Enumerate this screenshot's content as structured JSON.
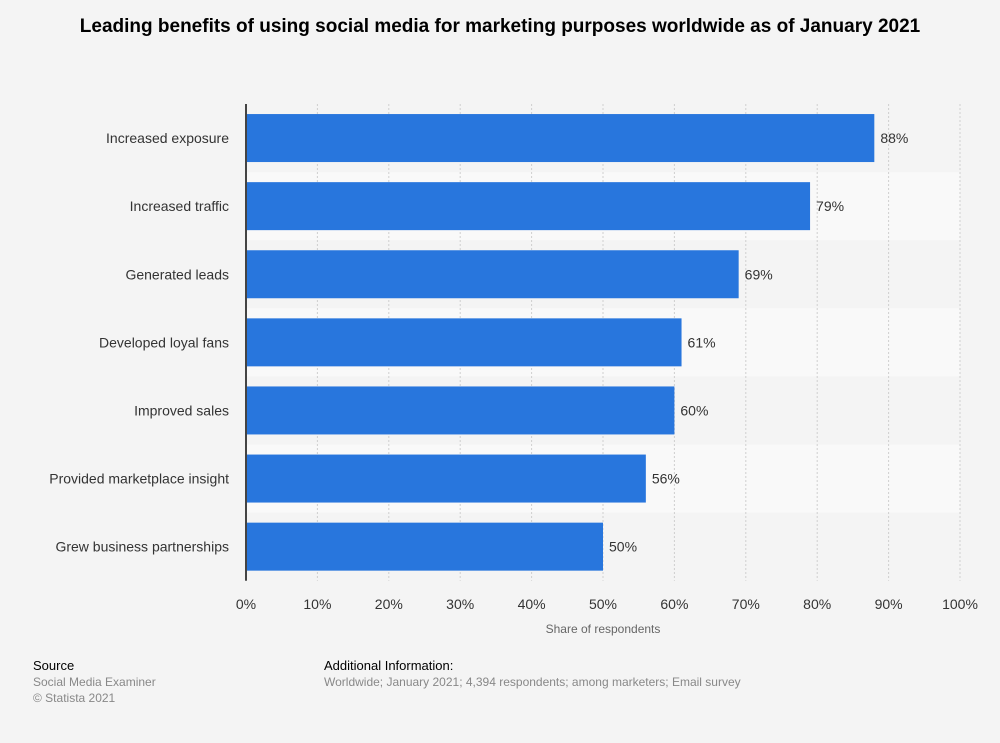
{
  "chart_data": {
    "type": "bar",
    "orientation": "horizontal",
    "title": "Leading benefits of using social media for marketing purposes worldwide as of January 2021",
    "categories": [
      "Increased exposure",
      "Increased traffic",
      "Generated leads",
      "Developed loyal fans",
      "Improved sales",
      "Provided marketplace insight",
      "Grew business partnerships"
    ],
    "values": [
      88,
      79,
      69,
      61,
      60,
      56,
      50
    ],
    "data_labels": [
      "88%",
      "79%",
      "69%",
      "61%",
      "60%",
      "56%",
      "50%"
    ],
    "xlabel": "Share of respondents",
    "xlim": [
      0,
      100
    ],
    "xticks": [
      "0%",
      "10%",
      "20%",
      "30%",
      "40%",
      "50%",
      "60%",
      "70%",
      "80%",
      "90%",
      "100%"
    ],
    "grid": "vertical dashed",
    "bar_color": "#2876dd"
  },
  "footer": {
    "source_heading": "Source",
    "source": "Social Media Examiner",
    "copyright": "© Statista 2021",
    "info_heading": "Additional Information:",
    "info": "Worldwide; January 2021; 4,394 respondents; among marketers; Email survey"
  }
}
